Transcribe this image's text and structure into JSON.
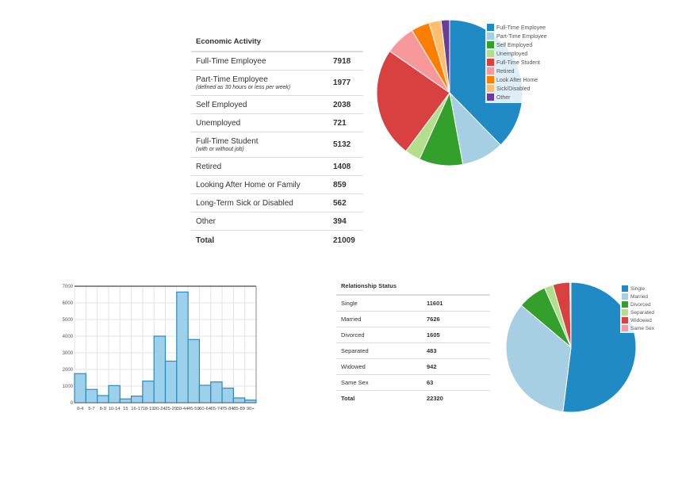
{
  "economic_activity": {
    "title": "Economic Activity",
    "rows": [
      {
        "label": "Full-Time Employee",
        "sub": "",
        "value": "7918"
      },
      {
        "label": "Part-Time Employee",
        "sub": "(defined as 30 hours or less per week)",
        "value": "1977"
      },
      {
        "label": "Self Employed",
        "sub": "",
        "value": "2038"
      },
      {
        "label": "Unemployed",
        "sub": "",
        "value": "721"
      },
      {
        "label": "Full-Time Student",
        "sub": "(with or without job)",
        "value": "5132"
      },
      {
        "label": "Retired",
        "sub": "",
        "value": "1408"
      },
      {
        "label": "Looking After Home or Family",
        "sub": "",
        "value": "859"
      },
      {
        "label": "Long-Term Sick or Disabled",
        "sub": "",
        "value": "562"
      },
      {
        "label": "Other",
        "sub": "",
        "value": "394"
      }
    ],
    "total_label": "Total",
    "total_value": "21009"
  },
  "relationship_status": {
    "title": "Relationship Status",
    "rows": [
      {
        "label": "Single",
        "value": "11601"
      },
      {
        "label": "Married",
        "value": "7626"
      },
      {
        "label": "Divorced",
        "value": "1605"
      },
      {
        "label": "Separated",
        "value": "483"
      },
      {
        "label": "Widowed",
        "value": "942"
      },
      {
        "label": "Same Sex",
        "value": "63"
      }
    ],
    "total_label": "Total",
    "total_value": "22320"
  },
  "chart_data": [
    {
      "type": "pie",
      "title": "Economic Activity",
      "legend_position": "top-right",
      "categories": [
        "Full-Time Employee",
        "Part-Time Employee",
        "Self Employed",
        "Unemployed",
        "Full-Time Student",
        "Retired",
        "Look After Home",
        "Sick/Disabled",
        "Other"
      ],
      "values": [
        7918,
        1977,
        2038,
        721,
        5132,
        1408,
        859,
        562,
        394
      ],
      "colors": [
        "#1f8ac3",
        "#a7cfe4",
        "#34a02c",
        "#b2df8a",
        "#d94040",
        "#f7999a",
        "#fe7f00",
        "#fdbf6f",
        "#6a3d9a"
      ]
    },
    {
      "type": "bar",
      "title": "",
      "xlabel": "",
      "ylabel": "",
      "ylim": [
        0,
        7000
      ],
      "yticks": [
        0,
        1000,
        2000,
        3000,
        4000,
        5000,
        6000,
        7000
      ],
      "grid": true,
      "categories": [
        "0-4",
        "5-7",
        "8-9",
        "10-14",
        "15",
        "16-17",
        "18-19",
        "20-24",
        "25-29",
        "30-44",
        "45-59",
        "60-64",
        "65-74",
        "75-84",
        "85-89",
        "90+"
      ],
      "values": [
        1750,
        800,
        430,
        1030,
        230,
        400,
        1300,
        4000,
        2500,
        6650,
        3800,
        1050,
        1250,
        880,
        290,
        160
      ],
      "color": "#9dd0ea",
      "edge_color": "#2a8bbf"
    },
    {
      "type": "pie",
      "title": "Relationship Status",
      "legend_position": "top-right",
      "categories": [
        "Single",
        "Married",
        "Divorced",
        "Separated",
        "Widowed",
        "Same Sex"
      ],
      "values": [
        11601,
        7626,
        1605,
        483,
        942,
        63
      ],
      "colors": [
        "#1f8ac3",
        "#a7cfe4",
        "#34a02c",
        "#b2df8a",
        "#d94040",
        "#f7999a"
      ]
    }
  ]
}
